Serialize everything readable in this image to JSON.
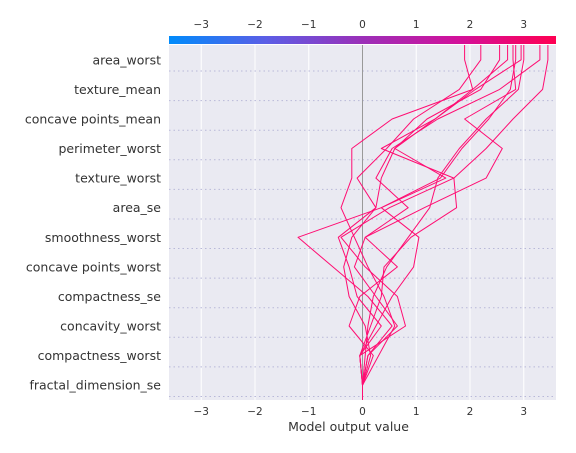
{
  "chart_data": {
    "type": "line",
    "title": "",
    "xlabel": "Model output value",
    "ylabel": "",
    "xlim": [
      -3.6,
      3.6
    ],
    "x_ticks": [
      -3,
      -2,
      -1,
      0,
      1,
      2,
      3
    ],
    "x_tick_labels": [
      "−3",
      "−2",
      "−1",
      "0",
      "1",
      "2",
      "3"
    ],
    "base_value": 0,
    "features": [
      "area_worst",
      "texture_mean",
      "concave points_mean",
      "perimeter_worst",
      "texture_worst",
      "area_se",
      "smoothness_worst",
      "concave points_worst",
      "compactness_se",
      "concavity_worst",
      "compactness_worst",
      "fractal_dimension_se"
    ],
    "colorbar": {
      "range": [
        -3.6,
        3.6
      ],
      "stops": [
        "#008bfb",
        "#5b5ee6",
        "#9b2fb8",
        "#d3119a",
        "#ff0052"
      ]
    },
    "line_color": "#ff0d72",
    "grid": true,
    "series": [
      {
        "values": [
          0.0,
          0.05,
          0.1,
          0.2,
          0.45,
          0.85,
          1.25,
          1.4,
          1.8,
          2.3,
          2.9,
          3.0
        ]
      },
      {
        "values": [
          0.0,
          -0.05,
          0.25,
          0.55,
          0.95,
          1.05,
          0.35,
          1.45,
          1.85,
          2.35,
          2.75,
          2.85
        ]
      },
      {
        "values": [
          0.0,
          0.15,
          0.05,
          -0.25,
          -0.35,
          -0.2,
          0.25,
          -0.1,
          0.45,
          0.95,
          1.8,
          2.2
        ]
      },
      {
        "values": [
          0.0,
          -0.05,
          0.8,
          0.65,
          0.05,
          -0.4,
          0.5,
          1.7,
          0.35,
          1.35,
          2.1,
          2.95
        ]
      },
      {
        "values": [
          0.0,
          0.1,
          0.65,
          0.25,
          -0.15,
          0.05,
          0.85,
          0.25,
          0.55,
          1.4,
          2.55,
          3.3
        ]
      },
      {
        "values": [
          0.0,
          -0.05,
          0.15,
          0.35,
          0.4,
          0.9,
          1.75,
          1.7,
          2.3,
          2.8,
          3.35,
          3.45
        ]
      },
      {
        "values": [
          0.0,
          0.1,
          0.55,
          0.1,
          -0.55,
          -1.2,
          0.35,
          1.55,
          0.6,
          1.35,
          2.05,
          1.9
        ]
      },
      {
        "values": [
          0.0,
          0.2,
          -0.25,
          -0.05,
          0.65,
          0.05,
          1.15,
          2.3,
          2.6,
          1.9,
          2.85,
          2.8
        ]
      },
      {
        "values": [
          0.0,
          0.3,
          0.6,
          0.4,
          0.1,
          -0.15,
          -0.4,
          -0.2,
          -0.2,
          0.55,
          2.05,
          2.7
        ]
      },
      {
        "values": [
          0.0,
          -0.05,
          0.35,
          -0.1,
          -0.25,
          -0.45,
          0.25,
          0.35,
          0.6,
          1.2,
          2.2,
          2.55
        ]
      }
    ]
  }
}
